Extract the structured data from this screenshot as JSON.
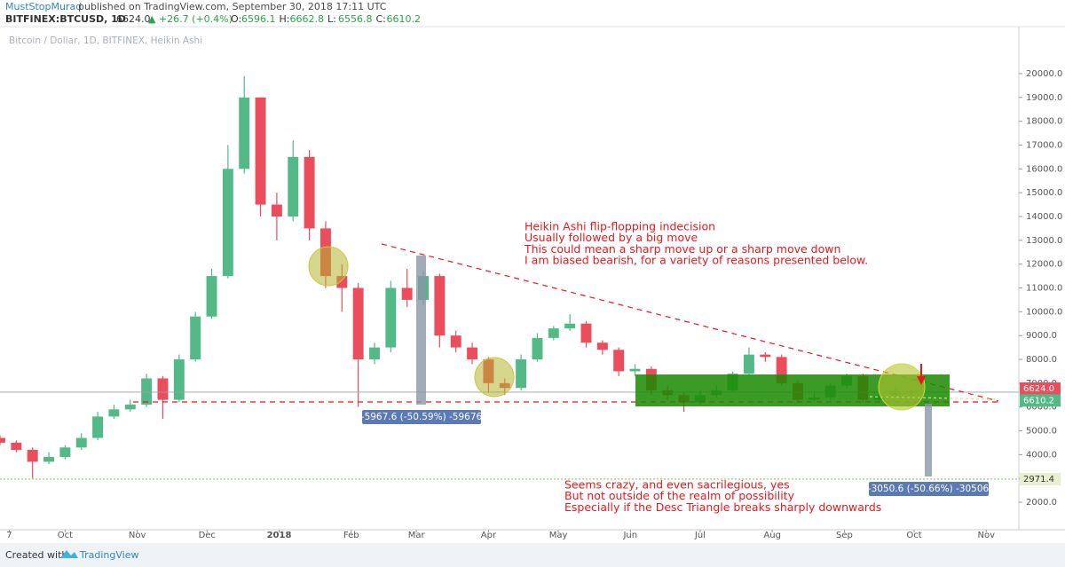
{
  "chart_data": {
    "type": "candlestick",
    "header": {
      "author": "MustStopMurad",
      "published": "published on TradingView.com, September 30, 2018 17:11 UTC",
      "symbol": "BITFINEX:BTCUSD, 1D",
      "last": "6624.0",
      "change": "▲ +26.7 (+0.4%)",
      "ohlc": [
        {
          "label": "O:",
          "value": "6596.1"
        },
        {
          "label": "H:",
          "value": "6662.8"
        },
        {
          "label": "L:",
          "value": "6556.8"
        },
        {
          "label": "C:",
          "value": "6610.2"
        }
      ]
    },
    "title": "Bitcoin / Dollar, 1D, BITFINEX, Heikin Ashi",
    "up_color": "#53b987",
    "down_color": "#eb4d5c",
    "x": [
      -28,
      -21,
      -14,
      -7,
      0,
      7,
      14,
      21,
      28,
      35,
      42,
      49,
      56,
      63,
      70,
      77,
      84,
      91,
      98,
      105,
      112,
      119,
      126,
      133,
      140,
      147,
      154,
      161,
      168,
      175,
      182,
      189,
      196,
      203,
      210,
      217,
      224,
      231,
      238,
      245,
      252,
      259,
      266,
      273,
      280,
      287,
      294,
      301,
      308,
      315,
      322,
      329,
      336,
      343,
      350,
      357,
      364
    ],
    "open": [
      4700,
      4500,
      4200,
      3700,
      3900,
      4300,
      4700,
      5600,
      5900,
      6100,
      7200,
      6300,
      8000,
      9800,
      11500,
      16000,
      19000,
      14500,
      14000,
      16500,
      13500,
      11500,
      11000,
      8000,
      8500,
      11000,
      10500,
      11500,
      9000,
      8500,
      8000,
      7000,
      6800,
      8000,
      8900,
      9300,
      9500,
      8700,
      8400,
      7500,
      7600,
      6700,
      6500,
      6200,
      6500,
      6700,
      7400,
      8200,
      8100,
      7000,
      6300,
      6400,
      6900,
      7300,
      6300,
      6500,
      6650
    ],
    "high": [
      4800,
      4600,
      4300,
      4100,
      4400,
      4900,
      5800,
      6100,
      6300,
      7400,
      7300,
      8200,
      10000,
      11800,
      17000,
      19900,
      19000,
      15000,
      17200,
      16800,
      13800,
      12000,
      11200,
      8700,
      11300,
      11800,
      11700,
      11600,
      9200,
      8700,
      8100,
      7200,
      8200,
      9100,
      9400,
      9900,
      9600,
      8800,
      8500,
      7800,
      7700,
      6900,
      6600,
      6700,
      6900,
      7500,
      8500,
      8300,
      8200,
      7100,
      6600,
      7000,
      7400,
      7400,
      6600,
      6800,
      6700
    ],
    "low": [
      4400,
      4100,
      3000,
      3600,
      3800,
      4200,
      4600,
      5500,
      5800,
      6000,
      5500,
      6200,
      7900,
      9700,
      11400,
      15800,
      14000,
      13000,
      13800,
      13000,
      11000,
      10000,
      6000,
      7800,
      8300,
      10200,
      10300,
      8500,
      8300,
      7800,
      6600,
      6500,
      6700,
      7900,
      8800,
      9200,
      8500,
      8200,
      7300,
      7300,
      6500,
      6300,
      5800,
      6100,
      6400,
      6600,
      7300,
      7900,
      6900,
      6200,
      6200,
      6300,
      6800,
      6200,
      6200,
      6400,
      6500
    ],
    "close": [
      4500,
      4200,
      3700,
      3900,
      4300,
      4700,
      5600,
      5900,
      6100,
      7200,
      6300,
      8000,
      9800,
      11500,
      16000,
      19000,
      14500,
      14000,
      16500,
      13500,
      11500,
      11000,
      8000,
      8500,
      11000,
      10500,
      11500,
      9000,
      8500,
      8000,
      7000,
      6800,
      8000,
      8900,
      9300,
      9500,
      8700,
      8400,
      7500,
      7600,
      6700,
      6500,
      6200,
      6500,
      6700,
      7400,
      8200,
      8100,
      7000,
      6300,
      6400,
      6900,
      7300,
      6300,
      6500,
      6650,
      6610
    ],
    "xlim": [
      -28,
      410
    ],
    "xticks": [
      {
        "value": -24,
        "label": "7"
      },
      {
        "value": 0,
        "label": "Oct"
      },
      {
        "value": 31,
        "label": "Nov"
      },
      {
        "value": 61,
        "label": "Dec"
      },
      {
        "value": 92,
        "label": "2018"
      },
      {
        "value": 123,
        "label": "Feb"
      },
      {
        "value": 151,
        "label": "Mar"
      },
      {
        "value": 182,
        "label": "Apr"
      },
      {
        "value": 212,
        "label": "May"
      },
      {
        "value": 243,
        "label": "Jun"
      },
      {
        "value": 273,
        "label": "Jul"
      },
      {
        "value": 304,
        "label": "Aug"
      },
      {
        "value": 335,
        "label": "Sep"
      },
      {
        "value": 365,
        "label": "Oct"
      },
      {
        "value": 396,
        "label": "Nov"
      }
    ],
    "ylim": [
      920,
      21900
    ],
    "yticks": [
      {
        "value": 2000,
        "label": "2000.0"
      },
      {
        "value": 3000,
        "label": "3000.0"
      },
      {
        "value": 4000,
        "label": "4000.0"
      },
      {
        "value": 5000,
        "label": "5000.0"
      },
      {
        "value": 6000,
        "label": "6000.0"
      },
      {
        "value": 7000,
        "label": "7000.0"
      },
      {
        "value": 8000,
        "label": "8000.0"
      },
      {
        "value": 9000,
        "label": "9000.0"
      },
      {
        "value": 10000,
        "label": "10000.0"
      },
      {
        "value": 11000,
        "label": "11000.0"
      },
      {
        "value": 12000,
        "label": "12000.0"
      },
      {
        "value": 13000,
        "label": "13000.0"
      },
      {
        "value": 14000,
        "label": "14000.0"
      },
      {
        "value": 15000,
        "label": "15000.0"
      },
      {
        "value": 16000,
        "label": "16000.0"
      },
      {
        "value": 17000,
        "label": "17000.0"
      },
      {
        "value": 18000,
        "label": "18000.0"
      },
      {
        "value": 19000,
        "label": "19000.0"
      },
      {
        "value": 20000,
        "label": "20000.0"
      }
    ],
    "grid": false,
    "price_lines": [
      {
        "value": 6624.0,
        "label": "6624.0",
        "color": "#eb4d5c"
      },
      {
        "value": 6610.2,
        "label": "6610.2",
        "color": "#53b987"
      },
      {
        "value": 2971.4,
        "label": "2971.4",
        "color": "#e8f0d0"
      }
    ],
    "annotations": [
      [
        "Heikin Ashi flip-flopping indecision",
        "Usually followed by a big move",
        "This could mean a sharp move up or a sharp move down",
        "I am biased bearish, for a variety of reasons presented below."
      ],
      [
        "Seems crazy, and even sacrilegious, yes",
        "But not outside of the realm of possibility",
        "Especially if the Desc Triangle breaks sharply downwards"
      ]
    ],
    "measurements": [
      "-5967.6 (-50.59%) -59676",
      "-3050.6 (-50.66%) -30506"
    ],
    "footer": {
      "created": "Created with",
      "brand": "TradingView"
    }
  }
}
